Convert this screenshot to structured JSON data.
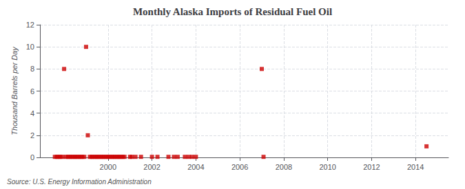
{
  "chart_data": {
    "type": "scatter",
    "title": "Monthly Alaska Imports of Residual Fuel Oil",
    "ylabel": "Thousand Barrels per Day",
    "annotation": "Source: U.S. Energy Information Administration",
    "color": "#cc0000",
    "marker": "square",
    "x": [
      1997.58,
      1997.67,
      1997.75,
      1997.83,
      1997.92,
      1998.0,
      1998.08,
      1998.17,
      1998.25,
      1998.33,
      1998.42,
      1998.5,
      1998.58,
      1998.67,
      1998.75,
      1998.83,
      1998.92,
      1999.0,
      1999.08,
      1999.17,
      1999.25,
      1999.33,
      1999.42,
      1999.5,
      1999.58,
      1999.67,
      1999.75,
      1999.83,
      1999.92,
      2000.0,
      2000.08,
      2000.17,
      2000.25,
      2000.33,
      2000.42,
      2000.5,
      2000.58,
      2000.67,
      2000.75,
      2001.0,
      2001.08,
      2001.25,
      2001.5,
      2002.0,
      2002.25,
      2002.75,
      2003.0,
      2003.17,
      2003.5,
      2003.67,
      2003.83,
      2004.0,
      2007.0,
      2007.08,
      2014.5
    ],
    "values": [
      0.05,
      0.05,
      0.05,
      0.05,
      0.05,
      8.0,
      0.05,
      0.05,
      0.05,
      0.05,
      0.05,
      0.05,
      0.05,
      0.05,
      0.05,
      0.05,
      0.05,
      10.0,
      2.0,
      0.05,
      0.05,
      0.05,
      0.05,
      0.05,
      0.05,
      0.05,
      0.05,
      0.05,
      0.05,
      0.05,
      0.05,
      0.05,
      0.05,
      0.05,
      0.05,
      0.05,
      0.05,
      0.05,
      0.05,
      0.05,
      0.05,
      0.05,
      0.05,
      0.05,
      0.05,
      0.05,
      0.05,
      0.05,
      0.05,
      0.05,
      0.05,
      0.05,
      8.0,
      0.05,
      1.0
    ],
    "xlim": [
      1996.9,
      2015.5
    ],
    "xticks": [
      2000,
      2002,
      2004,
      2006,
      2008,
      2010,
      2012,
      2014
    ],
    "ylim": [
      0,
      12
    ],
    "yticks": [
      0,
      2,
      4,
      6,
      8,
      10,
      12
    ],
    "grid": true
  }
}
